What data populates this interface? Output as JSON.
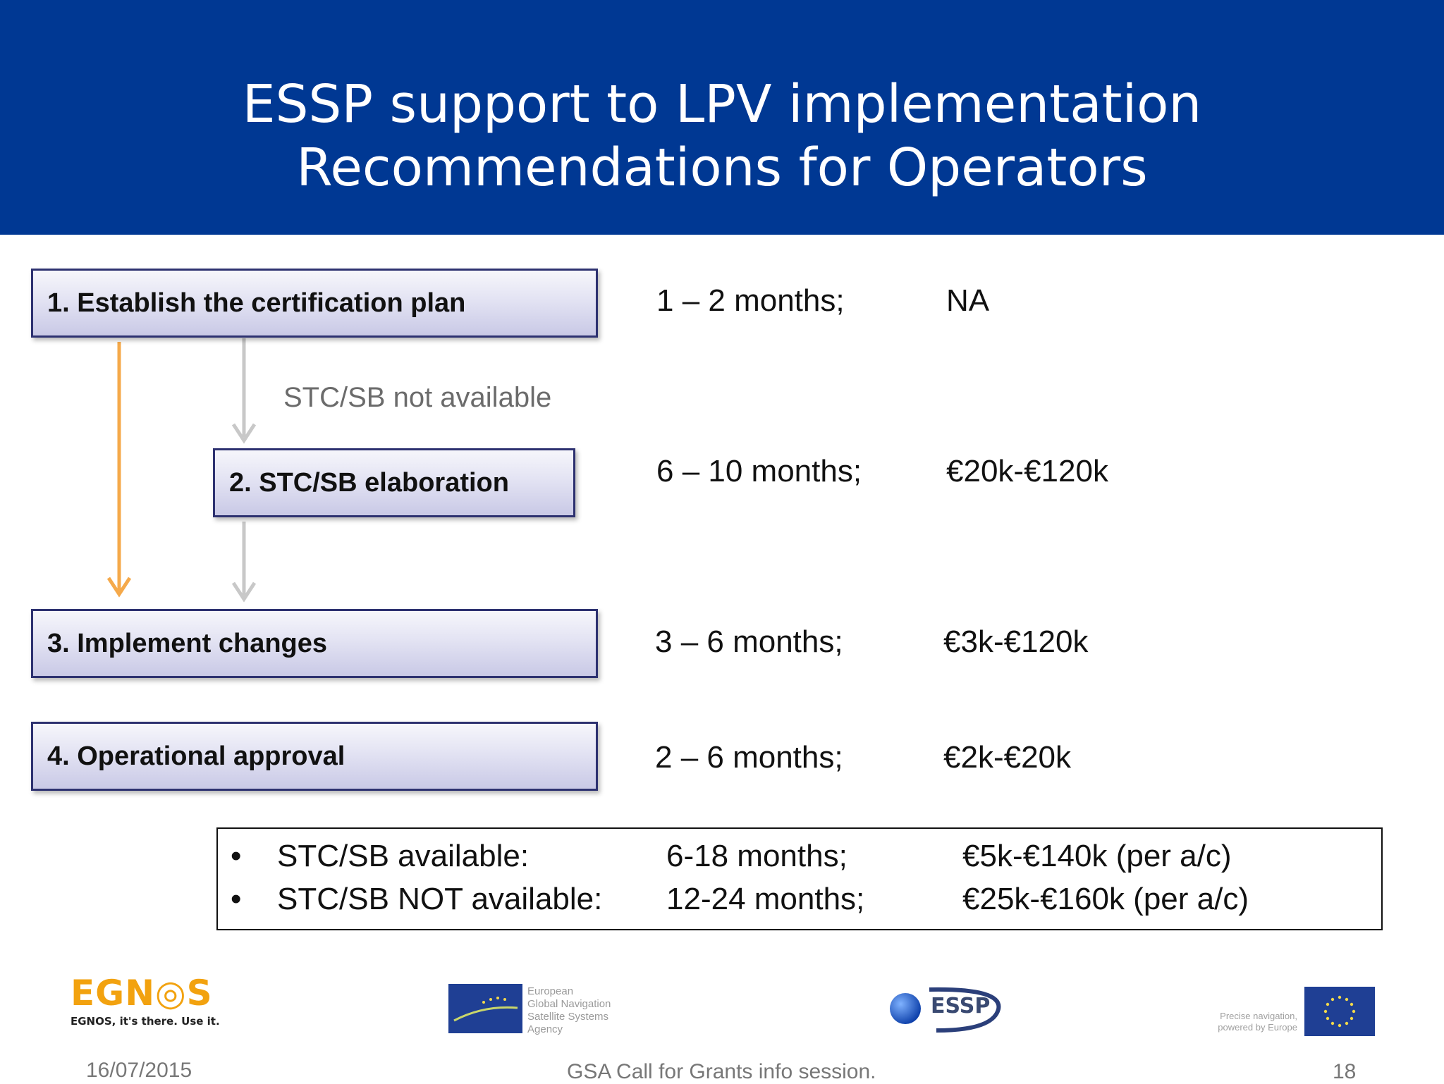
{
  "title": {
    "line1": "ESSP support to LPV implementation",
    "line2": "Recommendations for Operators"
  },
  "steps": [
    {
      "label": "1. Establish the certification plan",
      "duration": "1 – 2 months;",
      "cost": "NA"
    },
    {
      "label": "2. STC/SB elaboration",
      "duration": "6 – 10 months;",
      "cost": "€20k-€120k"
    },
    {
      "label": "3. Implement changes",
      "duration": "3 – 6 months;",
      "cost": "€3k-€120k"
    },
    {
      "label": "4. Operational approval",
      "duration": "2 – 6 months;",
      "cost": "€2k-€20k"
    }
  ],
  "branch_note": "STC/SB not available",
  "colors": {
    "banner": "#003893",
    "direct_arrow": "#f5a94a",
    "branch_arrow": "#c8c8c8",
    "step_border": "#2d3170"
  },
  "summary": [
    {
      "bullet": "•",
      "label": "STC/SB available:",
      "duration": "6-18 months;",
      "cost": "€5k-€140k  (per a/c)"
    },
    {
      "bullet": "•",
      "label": "STC/SB NOT available:",
      "duration": "12-24 months;",
      "cost": "€25k-€160k  (per a/c)"
    }
  ],
  "logos": {
    "egnos_word": "EGN◎S",
    "egnos_tagline": "EGNOS, it's there. Use it.",
    "gsa_lines": [
      "European",
      "Global Navigation",
      "Satellite Systems",
      "Agency"
    ],
    "essp_word": "ESSP",
    "eu_lines": [
      "Precise navigation,",
      "powered by Europe"
    ]
  },
  "footer": {
    "date": "16/07/2015",
    "event": "GSA Call for Grants info session.",
    "page": "18"
  }
}
